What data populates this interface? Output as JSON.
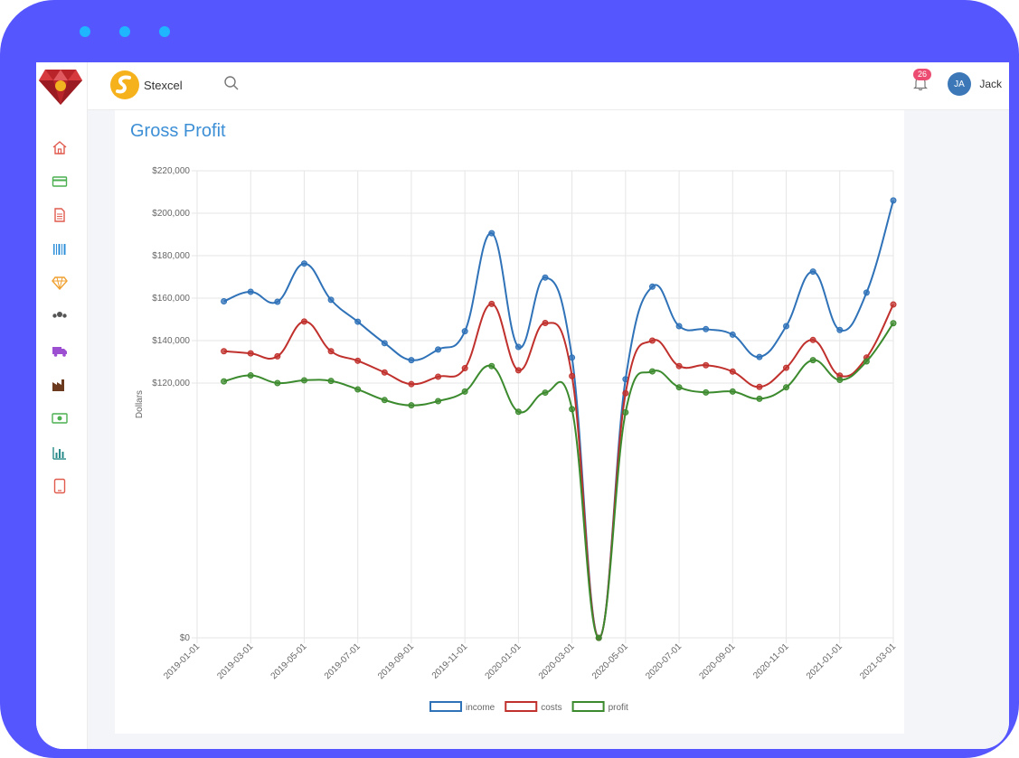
{
  "app": {
    "brand": "Stexcel"
  },
  "user": {
    "initials": "JA",
    "name": "Jack"
  },
  "notifications": {
    "count": "26"
  },
  "sidebar": {
    "items": [
      {
        "icon": "home-icon",
        "color": "#e05a4e"
      },
      {
        "icon": "credit-card-icon",
        "color": "#4caf50"
      },
      {
        "icon": "document-icon",
        "color": "#e05a4e"
      },
      {
        "icon": "barcode-icon",
        "color": "#2e8fd8"
      },
      {
        "icon": "diamond-icon",
        "color": "#f0a030"
      },
      {
        "icon": "users-icon",
        "color": "#555555"
      },
      {
        "icon": "truck-icon",
        "color": "#9c4fd0"
      },
      {
        "icon": "factory-icon",
        "color": "#6b3a1f"
      },
      {
        "icon": "money-icon",
        "color": "#4caf50"
      },
      {
        "icon": "bar-chart-icon",
        "color": "#2a8a8a"
      },
      {
        "icon": "tablet-icon",
        "color": "#e05a4e"
      }
    ]
  },
  "card": {
    "title": "Gross Profit"
  },
  "chart_data": {
    "type": "line",
    "title": "Gross Profit",
    "ylabel": "Dollars",
    "xlabel": "",
    "ylim": [
      0,
      220000
    ],
    "y_ticks": [
      "$0",
      "$120,000",
      "$140,000",
      "$160,000",
      "$180,000",
      "$200,000",
      "$220,000"
    ],
    "x_tick_labels": [
      "2019-01-01",
      "2019-03-01",
      "2019-05-01",
      "2019-07-01",
      "2019-09-01",
      "2019-11-01",
      "2020-01-01",
      "2020-03-01",
      "2020-05-01",
      "2020-07-01",
      "2020-09-01",
      "2020-11-01",
      "2021-01-01",
      "2021-03-01"
    ],
    "x": [
      "2019-02",
      "2019-03",
      "2019-04",
      "2019-05",
      "2019-06",
      "2019-07",
      "2019-08",
      "2019-09",
      "2019-10",
      "2019-11",
      "2019-12",
      "2020-01",
      "2020-02",
      "2020-03",
      "2020-04",
      "2020-05",
      "2020-06",
      "2020-07",
      "2020-08",
      "2020-09",
      "2020-10",
      "2020-11",
      "2020-12",
      "2021-01",
      "2021-02",
      "2021-03"
    ],
    "series": [
      {
        "name": "income",
        "color": "#2f72b8",
        "values": [
          158500,
          163000,
          158300,
          176300,
          159200,
          148900,
          138800,
          130800,
          135800,
          144400,
          190600,
          137000,
          169700,
          132000,
          0,
          121800,
          165400,
          146800,
          145400,
          142800,
          132300,
          146800,
          172500,
          145000,
          162600,
          206000
        ]
      },
      {
        "name": "costs",
        "color": "#c0302c",
        "values": [
          135000,
          134000,
          132600,
          149000,
          135000,
          130500,
          125000,
          119500,
          123000,
          127000,
          157300,
          126000,
          148300,
          123300,
          0,
          115200,
          140000,
          128000,
          128400,
          125400,
          118200,
          127200,
          140300,
          123500,
          132000,
          157000
        ]
      },
      {
        "name": "profit",
        "color": "#3c8a2e",
        "values": [
          120800,
          123600,
          120000,
          121300,
          121000,
          117000,
          112000,
          109500,
          111500,
          116000,
          128000,
          106500,
          115500,
          107700,
          0,
          106200,
          125500,
          118000,
          115600,
          116000,
          112600,
          118000,
          130800,
          121500,
          130200,
          148200
        ]
      }
    ],
    "legend_position": "bottom"
  }
}
